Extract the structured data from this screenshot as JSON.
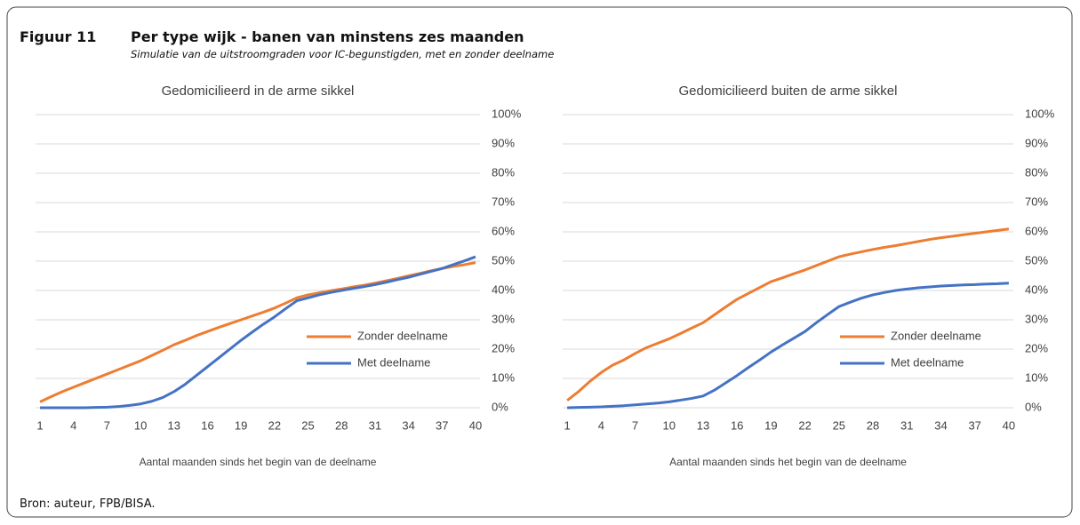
{
  "header": {
    "label": "Figuur 11",
    "title": "Per type wijk - banen van minstens zes maanden",
    "subtitle": "Simulatie van de uitstroomgraden voor IC-begunstigden, met en zonder deelname"
  },
  "chart_data": [
    {
      "type": "line",
      "title": "Gedomicilieerd in de arme sikkel",
      "x_label": "Aantal maanden sinds het begin van de deelname",
      "x": [
        1,
        2,
        3,
        4,
        5,
        6,
        7,
        8,
        9,
        10,
        11,
        12,
        13,
        14,
        15,
        16,
        17,
        18,
        19,
        20,
        21,
        22,
        23,
        24,
        25,
        26,
        27,
        28,
        29,
        30,
        31,
        32,
        33,
        34,
        35,
        36,
        37,
        38,
        39,
        40
      ],
      "xlim": [
        0.6,
        40.4
      ],
      "xticks": [
        1,
        4,
        7,
        10,
        13,
        16,
        19,
        22,
        25,
        28,
        31,
        34,
        37,
        40
      ],
      "ylim": [
        0,
        100
      ],
      "yticks": [
        {
          "value": 0,
          "label": "0%"
        },
        {
          "value": 10,
          "label": "10%"
        },
        {
          "value": 20,
          "label": "20%"
        },
        {
          "value": 30,
          "label": "30%"
        },
        {
          "value": 40,
          "label": "40%"
        },
        {
          "value": 50,
          "label": "50%"
        },
        {
          "value": 60,
          "label": "60%"
        },
        {
          "value": 70,
          "label": "70%"
        },
        {
          "value": 80,
          "label": "80%"
        },
        {
          "value": 90,
          "label": "90%"
        },
        {
          "value": 100,
          "label": "100%"
        }
      ],
      "grid": true,
      "legend": "bottom-right",
      "series": [
        {
          "name": "Zonder deelname",
          "color": "#ed7d31",
          "values": [
            2,
            3.8,
            5.5,
            7,
            8.5,
            10,
            11.5,
            13,
            14.5,
            16,
            17.8,
            19.6,
            21.5,
            23,
            24.6,
            26,
            27.4,
            28.7,
            30,
            31.3,
            32.6,
            34,
            35.7,
            37.5,
            38.5,
            39.2,
            39.9,
            40.5,
            41.2,
            41.8,
            42.5,
            43.3,
            44.1,
            45,
            45.8,
            46.7,
            47.5,
            48.2,
            48.8,
            49.5
          ]
        },
        {
          "name": "Met deelname",
          "color": "#4472c4",
          "values": [
            0,
            0,
            0,
            0,
            0,
            0.1,
            0.2,
            0.4,
            0.8,
            1.3,
            2.2,
            3.5,
            5.5,
            8,
            11,
            14,
            17,
            20,
            23,
            25.8,
            28.5,
            31,
            33.8,
            36.5,
            37.5,
            38.5,
            39.3,
            40,
            40.7,
            41.3,
            42,
            42.8,
            43.7,
            44.5,
            45.5,
            46.5,
            47.5,
            48.8,
            50.1,
            51.5
          ]
        }
      ]
    },
    {
      "type": "line",
      "title": "Gedomicilieerd buiten de arme sikkel",
      "x_label": "Aantal maanden sinds het begin van de deelname",
      "x": [
        1,
        2,
        3,
        4,
        5,
        6,
        7,
        8,
        9,
        10,
        11,
        12,
        13,
        14,
        15,
        16,
        17,
        18,
        19,
        20,
        21,
        22,
        23,
        24,
        25,
        26,
        27,
        28,
        29,
        30,
        31,
        32,
        33,
        34,
        35,
        36,
        37,
        38,
        39,
        40
      ],
      "xlim": [
        0.6,
        40.4
      ],
      "xticks": [
        1,
        4,
        7,
        10,
        13,
        16,
        19,
        22,
        25,
        28,
        31,
        34,
        37,
        40
      ],
      "ylim": [
        0,
        100
      ],
      "yticks": [
        {
          "value": 0,
          "label": "0%"
        },
        {
          "value": 10,
          "label": "10%"
        },
        {
          "value": 20,
          "label": "20%"
        },
        {
          "value": 30,
          "label": "30%"
        },
        {
          "value": 40,
          "label": "40%"
        },
        {
          "value": 50,
          "label": "50%"
        },
        {
          "value": 60,
          "label": "60%"
        },
        {
          "value": 70,
          "label": "70%"
        },
        {
          "value": 80,
          "label": "80%"
        },
        {
          "value": 90,
          "label": "90%"
        },
        {
          "value": 100,
          "label": "100%"
        }
      ],
      "grid": true,
      "legend": "bottom-right",
      "series": [
        {
          "name": "Zonder deelname",
          "color": "#ed7d31",
          "values": [
            2.5,
            5.5,
            9,
            12,
            14.5,
            16.3,
            18.5,
            20.5,
            22,
            23.5,
            25.3,
            27.2,
            29,
            31.7,
            34.4,
            37,
            39,
            41,
            43,
            44.3,
            45.7,
            47,
            48.5,
            50,
            51.5,
            52.4,
            53.2,
            54,
            54.7,
            55.3,
            56,
            56.7,
            57.4,
            58,
            58.5,
            59,
            59.5,
            60,
            60.5,
            61
          ]
        },
        {
          "name": "Met deelname",
          "color": "#4472c4",
          "values": [
            0,
            0.1,
            0.2,
            0.3,
            0.5,
            0.7,
            1,
            1.3,
            1.6,
            2,
            2.6,
            3.2,
            4,
            6,
            8.5,
            11,
            13.7,
            16.3,
            19,
            21.4,
            23.7,
            26,
            29,
            31.8,
            34.5,
            36,
            37.4,
            38.5,
            39.3,
            40,
            40.5,
            40.9,
            41.2,
            41.5,
            41.7,
            41.9,
            42,
            42.2,
            42.3,
            42.5
          ]
        }
      ]
    }
  ],
  "footer": "Bron: auteur, FPB/BISA."
}
